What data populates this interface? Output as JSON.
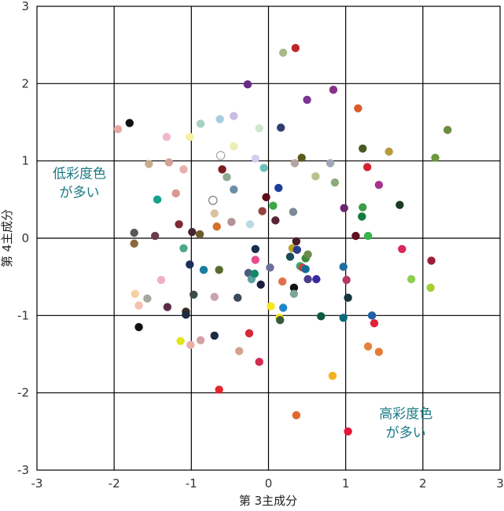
{
  "chart_data": {
    "type": "scatter",
    "title": "",
    "xlabel": "第 3主成分",
    "ylabel": "第 4主成分",
    "xlim": [
      -3,
      3
    ],
    "ylim": [
      -3,
      3
    ],
    "x_ticks": [
      "-3",
      "-2",
      "-1",
      "0",
      "1",
      "2",
      "3"
    ],
    "y_ticks": [
      "-3",
      "-2",
      "-1",
      "0",
      "1",
      "2",
      "3"
    ],
    "grid": true,
    "annotations": [
      {
        "lines": [
          "低彩度色",
          "が多い"
        ],
        "x": -2.45,
        "y": 0.78
      },
      {
        "lines": [
          "高彩度色",
          "が多い"
        ],
        "x": 1.78,
        "y": -2.33
      }
    ],
    "points": [
      {
        "x": -1.95,
        "y": 1.41,
        "color": "#e8a9a4"
      },
      {
        "x": -1.8,
        "y": 1.49,
        "color": "#111111"
      },
      {
        "x": -1.55,
        "y": 0.96,
        "color": "#c7ae8e"
      },
      {
        "x": -1.32,
        "y": 1.31,
        "color": "#f3b8c8"
      },
      {
        "x": -1.29,
        "y": 0.98,
        "color": "#d6a196"
      },
      {
        "x": -1.1,
        "y": 0.89,
        "color": "#e8aeb0"
      },
      {
        "x": -1.02,
        "y": 1.31,
        "color": "#f6f0a0"
      },
      {
        "x": -0.88,
        "y": 1.48,
        "color": "#a7d1c5"
      },
      {
        "x": -0.63,
        "y": 1.54,
        "color": "#a9cce0"
      },
      {
        "x": -0.45,
        "y": 1.58,
        "color": "#c8bde0"
      },
      {
        "x": -0.12,
        "y": 1.42,
        "color": "#cde8d0"
      },
      {
        "x": 0.16,
        "y": 1.43,
        "color": "#2e3e6f"
      },
      {
        "x": -0.45,
        "y": 1.19,
        "color": "#ecedb2"
      },
      {
        "x": -0.62,
        "y": 1.07,
        "color": "#ffffff",
        "stroke": "#999999"
      },
      {
        "x": -0.17,
        "y": 1.03,
        "color": "#cfd0ee"
      },
      {
        "x": -0.06,
        "y": 0.91,
        "color": "#6ec2bd"
      },
      {
        "x": -0.27,
        "y": 1.99,
        "color": "#6a2a86"
      },
      {
        "x": 0.19,
        "y": 2.4,
        "color": "#aab98a"
      },
      {
        "x": 0.35,
        "y": 2.46,
        "color": "#c0262d"
      },
      {
        "x": 0.5,
        "y": 1.79,
        "color": "#7c3393"
      },
      {
        "x": 0.84,
        "y": 1.92,
        "color": "#8a2f88"
      },
      {
        "x": 1.16,
        "y": 1.68,
        "color": "#d85d2a"
      },
      {
        "x": 1.22,
        "y": 1.16,
        "color": "#4a5a22"
      },
      {
        "x": 1.56,
        "y": 1.12,
        "color": "#b89a3d"
      },
      {
        "x": 2.32,
        "y": 1.4,
        "color": "#6b8e3f"
      },
      {
        "x": 2.16,
        "y": 1.04,
        "color": "#6e9a3e"
      },
      {
        "x": 1.28,
        "y": 0.92,
        "color": "#d0252e"
      },
      {
        "x": 1.43,
        "y": 0.69,
        "color": "#a83290"
      },
      {
        "x": 0.43,
        "y": 1.04,
        "color": "#5c5a1b"
      },
      {
        "x": 0.34,
        "y": 0.97,
        "color": "#b4a4a3"
      },
      {
        "x": 0.61,
        "y": 0.8,
        "color": "#b5c48c"
      },
      {
        "x": 0.8,
        "y": 0.97,
        "color": "#9fa7b8"
      },
      {
        "x": 0.86,
        "y": 0.72,
        "color": "#8aaa78"
      },
      {
        "x": -1.44,
        "y": 0.5,
        "color": "#14a38e"
      },
      {
        "x": -1.2,
        "y": 0.58,
        "color": "#d79991"
      },
      {
        "x": -0.72,
        "y": 0.49,
        "color": "#ffffff",
        "stroke": "#666666"
      },
      {
        "x": -0.6,
        "y": 0.89,
        "color": "#7a1e1c"
      },
      {
        "x": -0.54,
        "y": 0.79,
        "color": "#8faa93"
      },
      {
        "x": -0.45,
        "y": 0.63,
        "color": "#6d8ea4"
      },
      {
        "x": -0.7,
        "y": 0.32,
        "color": "#d8c3a0"
      },
      {
        "x": -0.48,
        "y": 0.21,
        "color": "#b39298"
      },
      {
        "x": -0.24,
        "y": 0.18,
        "color": "#b8dbe3"
      },
      {
        "x": -0.08,
        "y": 0.35,
        "color": "#95413f"
      },
      {
        "x": -0.03,
        "y": 0.53,
        "color": "#5c0d16"
      },
      {
        "x": 0.06,
        "y": 0.42,
        "color": "#3aa849"
      },
      {
        "x": 0.13,
        "y": 0.65,
        "color": "#1b3e9a"
      },
      {
        "x": 0.09,
        "y": 0.23,
        "color": "#5a2438"
      },
      {
        "x": 0.32,
        "y": 0.34,
        "color": "#7b8a99"
      },
      {
        "x": 0.98,
        "y": 0.39,
        "color": "#6a2371"
      },
      {
        "x": 1.22,
        "y": 0.4,
        "color": "#3a9f47"
      },
      {
        "x": 1.21,
        "y": 0.28,
        "color": "#157a40"
      },
      {
        "x": 1.7,
        "y": 0.43,
        "color": "#1a3b24"
      },
      {
        "x": 1.13,
        "y": 0.03,
        "color": "#63101d"
      },
      {
        "x": 1.29,
        "y": 0.03,
        "color": "#35b54a"
      },
      {
        "x": -1.74,
        "y": 0.07,
        "color": "#55585a"
      },
      {
        "x": -1.74,
        "y": -0.07,
        "color": "#8a6a3c"
      },
      {
        "x": -1.47,
        "y": 0.03,
        "color": "#6b3c4e"
      },
      {
        "x": -1.16,
        "y": 0.18,
        "color": "#7e2b3a"
      },
      {
        "x": -0.99,
        "y": 0.08,
        "color": "#4a2530"
      },
      {
        "x": -0.89,
        "y": 0.05,
        "color": "#6f5a2b"
      },
      {
        "x": -0.67,
        "y": 0.15,
        "color": "#d56f28"
      },
      {
        "x": -1.1,
        "y": -0.13,
        "color": "#4aa88e"
      },
      {
        "x": -1.02,
        "y": -0.34,
        "color": "#1b2f5a"
      },
      {
        "x": -0.84,
        "y": -0.41,
        "color": "#1b7da0"
      },
      {
        "x": -0.64,
        "y": -0.41,
        "color": "#5a6b2f"
      },
      {
        "x": -1.39,
        "y": -0.54,
        "color": "#f0b0c0"
      },
      {
        "x": -1.73,
        "y": -0.72,
        "color": "#f8d0a0"
      },
      {
        "x": -1.68,
        "y": -0.87,
        "color": "#f6c0b0"
      },
      {
        "x": -1.57,
        "y": -0.78,
        "color": "#a9a6a0"
      },
      {
        "x": -1.31,
        "y": -0.89,
        "color": "#5b2d48"
      },
      {
        "x": -1.07,
        "y": -0.95,
        "color": "#3b2a1e"
      },
      {
        "x": -1.07,
        "y": -0.99,
        "color": "#1e2a3d"
      },
      {
        "x": -0.97,
        "y": -0.73,
        "color": "#3a4d40"
      },
      {
        "x": -0.7,
        "y": -0.76,
        "color": "#c7a3ab"
      },
      {
        "x": -0.4,
        "y": -0.77,
        "color": "#3b4a5a"
      },
      {
        "x": -0.26,
        "y": -0.45,
        "color": "#4a5e7a"
      },
      {
        "x": -0.22,
        "y": -0.53,
        "color": "#5ca0a0"
      },
      {
        "x": -0.18,
        "y": -0.46,
        "color": "#128a69"
      },
      {
        "x": -0.17,
        "y": -0.28,
        "color": "#e64d8a"
      },
      {
        "x": -0.17,
        "y": -0.14,
        "color": "#1a2e4d"
      },
      {
        "x": -0.1,
        "y": -0.6,
        "color": "#1a1f3e"
      },
      {
        "x": 0.02,
        "y": -0.38,
        "color": "#6b6f9b"
      },
      {
        "x": 0.18,
        "y": -0.56,
        "color": "#e36f4a"
      },
      {
        "x": 0.31,
        "y": -0.13,
        "color": "#b9a227"
      },
      {
        "x": 0.36,
        "y": -0.04,
        "color": "#4a1c26"
      },
      {
        "x": 0.37,
        "y": -0.15,
        "color": "#2a3d8e"
      },
      {
        "x": 0.28,
        "y": -0.24,
        "color": "#1b4a5a"
      },
      {
        "x": 0.41,
        "y": -0.36,
        "color": "#3aaa6c"
      },
      {
        "x": 0.44,
        "y": -0.38,
        "color": "#c54a3e"
      },
      {
        "x": 0.48,
        "y": -0.4,
        "color": "#126d9a"
      },
      {
        "x": 0.48,
        "y": -0.26,
        "color": "#3c8a3a"
      },
      {
        "x": 0.51,
        "y": -0.21,
        "color": "#6b8a4e"
      },
      {
        "x": 0.51,
        "y": -0.53,
        "color": "#4b3a8e"
      },
      {
        "x": 0.62,
        "y": -0.53,
        "color": "#3b2a9a"
      },
      {
        "x": 0.33,
        "y": -0.64,
        "color": "#111111"
      },
      {
        "x": 0.33,
        "y": -0.72,
        "color": "#7aa69c"
      },
      {
        "x": 0.97,
        "y": -0.37,
        "color": "#1c6fa0"
      },
      {
        "x": 1.01,
        "y": -0.54,
        "color": "#b23a6a"
      },
      {
        "x": 1.03,
        "y": -0.77,
        "color": "#17353c"
      },
      {
        "x": 1.73,
        "y": -0.14,
        "color": "#d6285a"
      },
      {
        "x": 2.11,
        "y": -0.29,
        "color": "#9c1f38"
      },
      {
        "x": 1.85,
        "y": -0.53,
        "color": "#8fcf4f"
      },
      {
        "x": 2.1,
        "y": -0.64,
        "color": "#a4cf2e"
      },
      {
        "x": 1.34,
        "y": -1.0,
        "color": "#1f5fa8"
      },
      {
        "x": 1.37,
        "y": -1.1,
        "color": "#e0213a"
      },
      {
        "x": 0.68,
        "y": -1.01,
        "color": "#0e5a3e"
      },
      {
        "x": 0.97,
        "y": -1.03,
        "color": "#0a6b7a"
      },
      {
        "x": 0.03,
        "y": -0.88,
        "color": "#f5e71f"
      },
      {
        "x": 0.19,
        "y": -0.9,
        "color": "#1e88c8"
      },
      {
        "x": 0.14,
        "y": -1.03,
        "color": "#f0e21c"
      },
      {
        "x": 0.15,
        "y": -1.06,
        "color": "#3a5a3a"
      },
      {
        "x": -1.68,
        "y": -1.15,
        "color": "#111111"
      },
      {
        "x": -1.14,
        "y": -1.33,
        "color": "#e0e61c"
      },
      {
        "x": -1.01,
        "y": -1.38,
        "color": "#e9aea7"
      },
      {
        "x": -0.88,
        "y": -1.32,
        "color": "#d6a0a7"
      },
      {
        "x": -0.7,
        "y": -1.26,
        "color": "#1c2a44"
      },
      {
        "x": -0.38,
        "y": -1.46,
        "color": "#d4a390"
      },
      {
        "x": -0.25,
        "y": -1.23,
        "color": "#d8293a"
      },
      {
        "x": -0.12,
        "y": -1.6,
        "color": "#d42a52"
      },
      {
        "x": 1.29,
        "y": -1.4,
        "color": "#e4813a"
      },
      {
        "x": 1.43,
        "y": -1.47,
        "color": "#e57a36"
      },
      {
        "x": 0.83,
        "y": -1.78,
        "color": "#f5b21a"
      },
      {
        "x": -0.64,
        "y": -1.96,
        "color": "#e3262e"
      },
      {
        "x": 0.36,
        "y": -2.29,
        "color": "#e06a2e"
      },
      {
        "x": 1.03,
        "y": -2.5,
        "color": "#e6173a"
      }
    ]
  }
}
